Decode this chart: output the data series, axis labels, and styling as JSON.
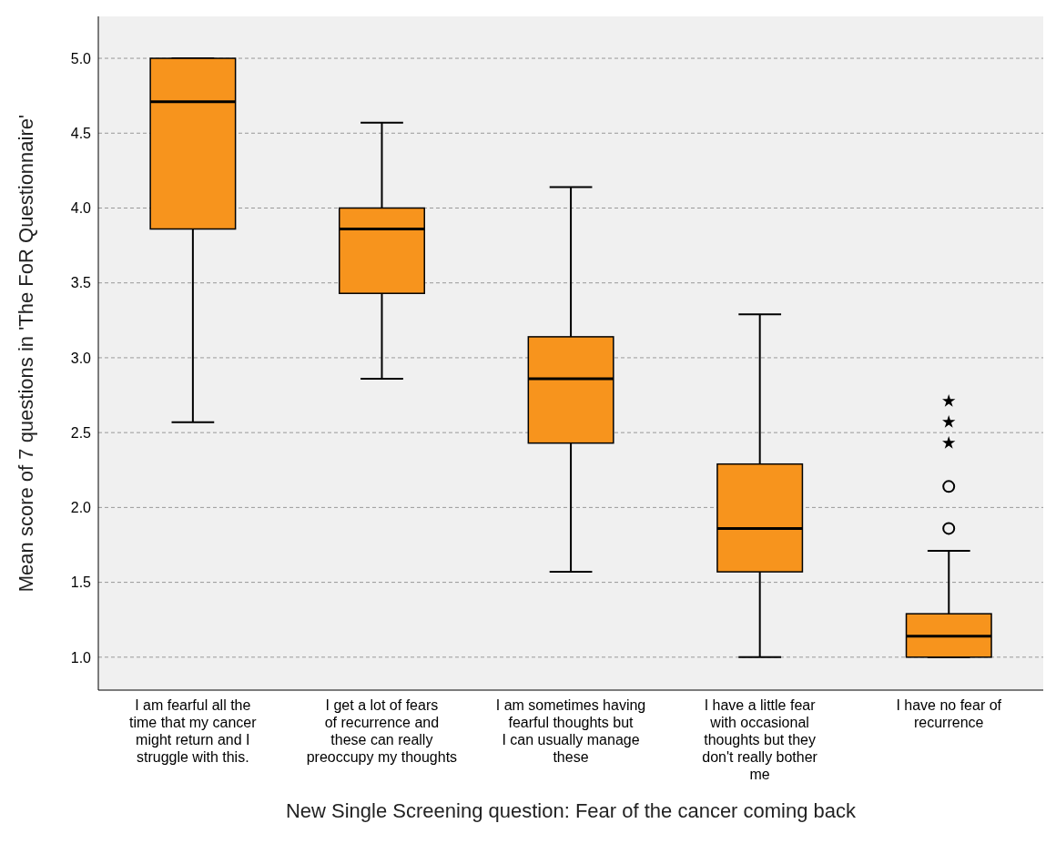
{
  "chart_data": {
    "type": "box",
    "xlabel": "New Single Screening question: Fear of the cancer coming back",
    "ylabel": "Mean score of 7 questions in 'The FoR Questionnaire'",
    "categories": [
      "I am fearful all the time that my cancer might return and I struggle with this.",
      "I get a lot of fears of recurrence and these can really preoccupy my thoughts",
      "I am sometimes having fearful thoughts but I can usually manage these",
      "I have a little fear with occasional thoughts but they don't really bother me",
      "I have no fear of recurrence"
    ],
    "ylim": [
      0.78,
      5.28
    ],
    "yticks": [
      {
        "value": 1,
        "label": "1.0"
      },
      {
        "value": 1.5,
        "label": "1.5"
      },
      {
        "value": 2,
        "label": "2.0"
      },
      {
        "value": 2.5,
        "label": "2.5"
      },
      {
        "value": 3,
        "label": "3.0"
      },
      {
        "value": 3.5,
        "label": "3.5"
      },
      {
        "value": 4,
        "label": "4.0"
      },
      {
        "value": 4.5,
        "label": "4.5"
      },
      {
        "value": 5,
        "label": "5.0"
      }
    ],
    "grid": "y",
    "line_style": "dashed",
    "series": [
      {
        "color": "#f7941d",
        "boxes": [
          {
            "low": 2.57,
            "q1": 3.86,
            "median": 4.71,
            "q3": 5.0,
            "high": 5.0
          },
          {
            "low": 2.86,
            "q1": 3.43,
            "median": 3.86,
            "q3": 4.0,
            "high": 4.57
          },
          {
            "low": 1.57,
            "q1": 2.43,
            "median": 2.86,
            "q3": 3.14,
            "high": 4.14
          },
          {
            "low": 1.0,
            "q1": 1.57,
            "median": 1.86,
            "q3": 2.29,
            "high": 3.29
          },
          {
            "low": 1.0,
            "q1": 1.0,
            "median": 1.14,
            "q3": 1.29,
            "high": 1.71,
            "outliers": [
              2.14,
              1.86
            ]
          }
        ]
      },
      {
        "type": "scatter",
        "marker": "star",
        "color": "#000000",
        "x": [
          "I have no fear of recurrence",
          "I have no fear of recurrence",
          "I have no fear of recurrence"
        ],
        "values": [
          2.71,
          2.57,
          2.43
        ]
      }
    ]
  }
}
